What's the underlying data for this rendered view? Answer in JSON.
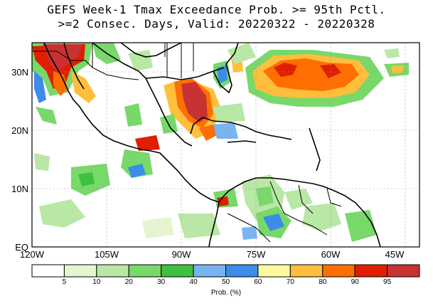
{
  "title": {
    "line1": "GEFS Week-1 Tmax Exceedance Prob. >= 95th Pctl.",
    "line2": ">=2 Consec. Days, Valid: 20220322 - 20220328"
  },
  "map": {
    "lon_labels": [
      "120W",
      "105W",
      "90W",
      "75W",
      "60W",
      "45W"
    ],
    "lat_labels": [
      "30N",
      "20N",
      "10N",
      "EQ"
    ],
    "lon_range": [
      -120,
      -42
    ],
    "lat_range": [
      0,
      35
    ]
  },
  "colorbar": {
    "title": "Prob. (%)",
    "tick_labels": [
      "5",
      "10",
      "20",
      "30",
      "40",
      "50",
      "60",
      "70",
      "80",
      "90",
      "95"
    ],
    "colors": [
      "#ffffff",
      "#e6f5d0",
      "#b9e7a5",
      "#78d86a",
      "#3fc040",
      "#7ab4f0",
      "#3c8ce8",
      "#fffaa0",
      "#ffbe3c",
      "#ff6e00",
      "#e01e00",
      "#c83232"
    ]
  },
  "colors": {
    "coast": "#000000",
    "grid": "#999999"
  }
}
